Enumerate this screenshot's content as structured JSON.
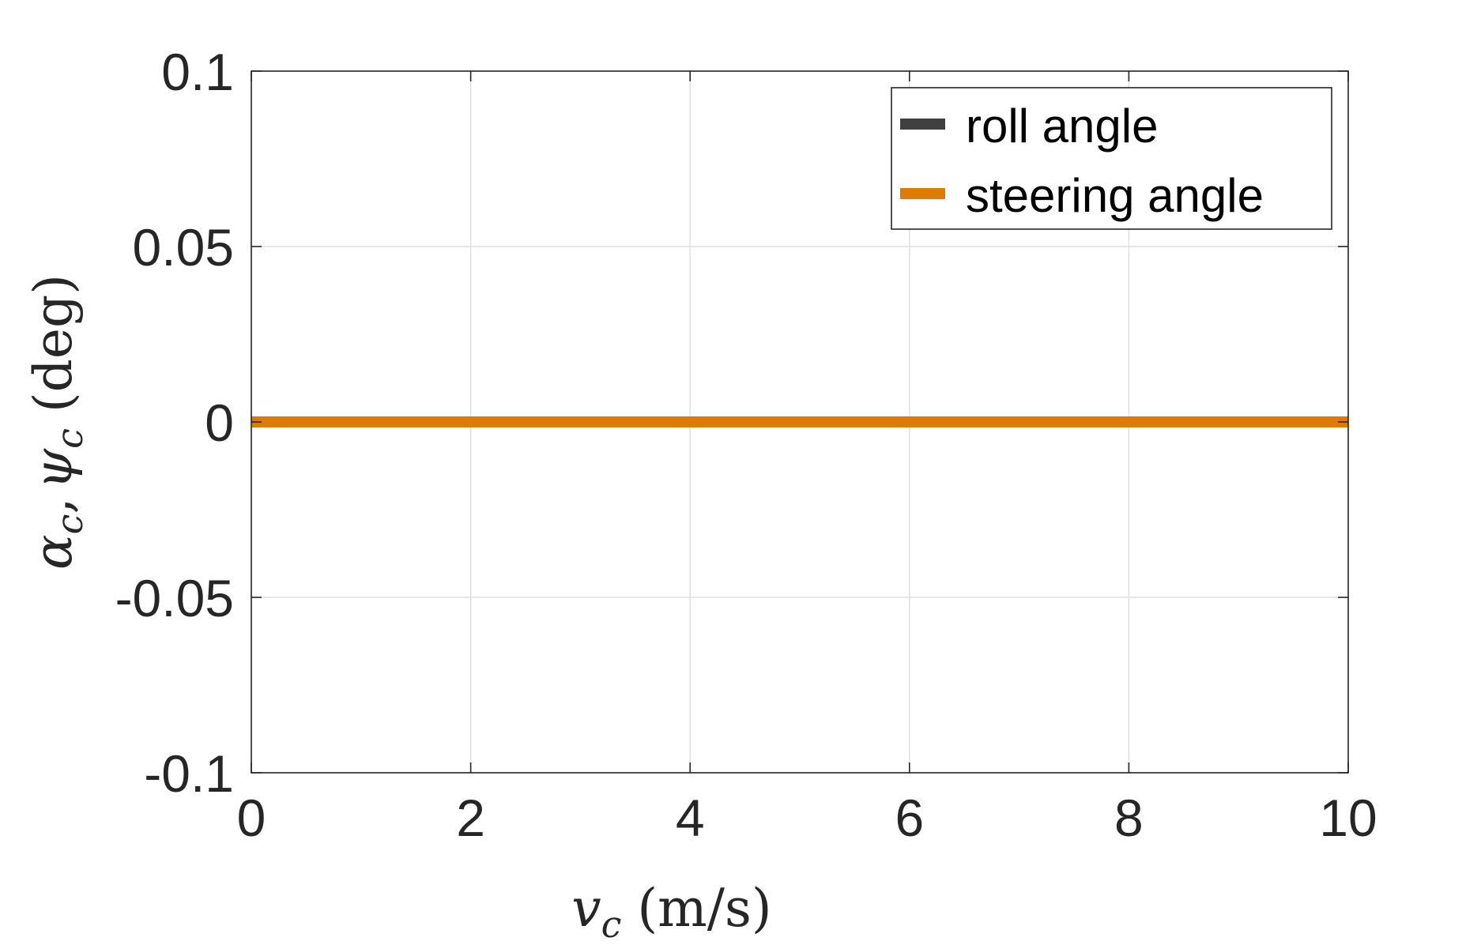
{
  "chart_data": {
    "type": "line",
    "xlabel": {
      "symbol": "v",
      "subscript": "c",
      "unit": "(m/s)"
    },
    "ylabel": {
      "symbol1": "α",
      "sub1": "c",
      "symbol2": "ψ",
      "sub2": "c",
      "unit": "(deg)"
    },
    "xlim": [
      0,
      10
    ],
    "ylim": [
      -0.1,
      0.1
    ],
    "xticks": [
      0,
      2,
      4,
      6,
      8,
      10
    ],
    "xtick_labels": [
      "0",
      "2",
      "4",
      "6",
      "8",
      "10"
    ],
    "yticks": [
      -0.1,
      -0.05,
      0,
      0.05,
      0.1
    ],
    "ytick_labels": [
      "-0.1",
      "-0.05",
      "0",
      "0.05",
      "0.1"
    ],
    "grid": true,
    "legend_position": "top-right",
    "series": [
      {
        "name": "roll angle",
        "color": "#404040",
        "x": [
          0,
          10
        ],
        "y": [
          0,
          0
        ]
      },
      {
        "name": "steering angle",
        "color": "#e07b00",
        "x": [
          0,
          10
        ],
        "y": [
          0,
          0
        ]
      }
    ]
  }
}
